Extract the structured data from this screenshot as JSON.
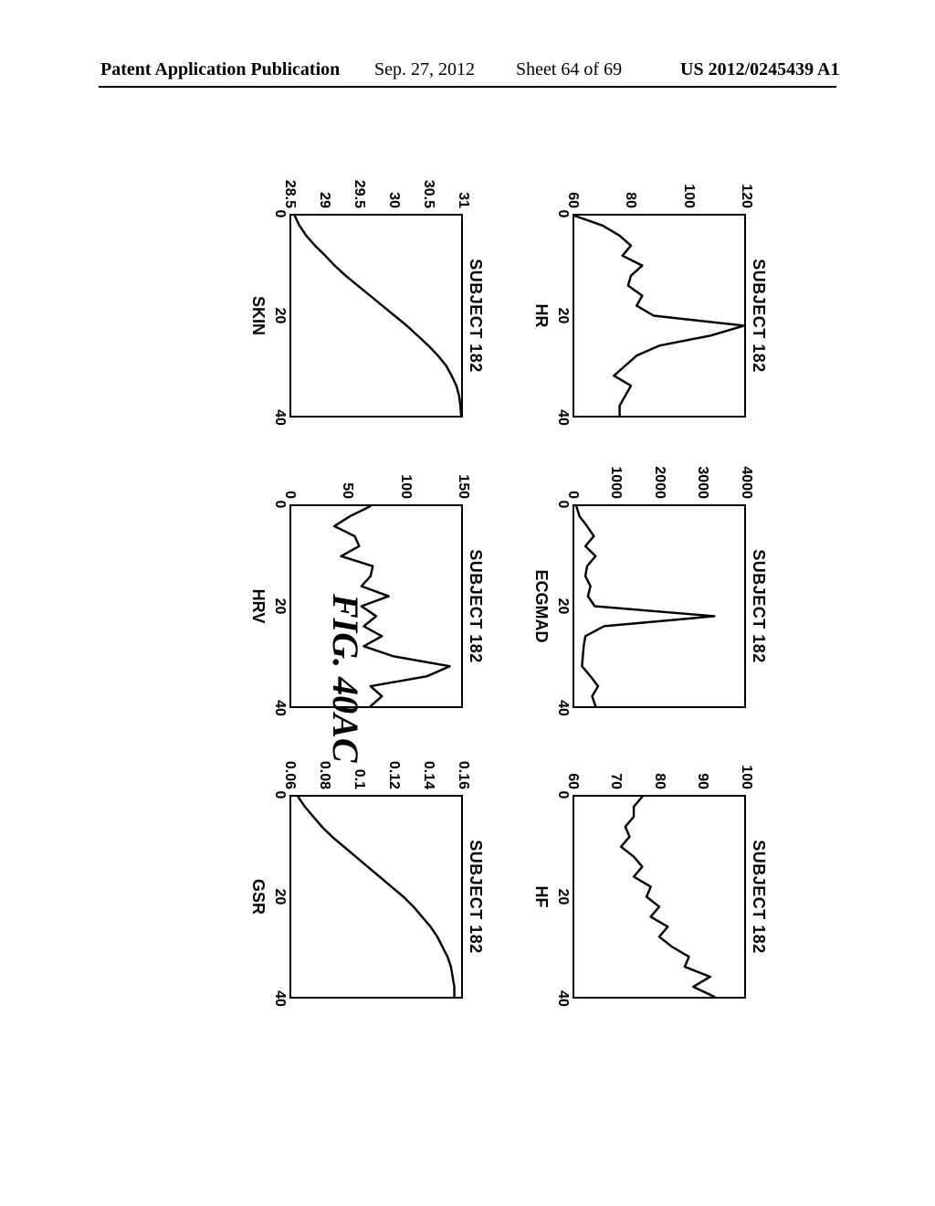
{
  "header": {
    "left": "Patent Application Publication",
    "date": "Sep. 27, 2012",
    "sheet": "Sheet 64 of 69",
    "docnum": "US 2012/0245439 A1"
  },
  "figure_label": "FIG. 40AC",
  "common": {
    "panel_title": "SUBJECT 182",
    "xticks": [
      0,
      20,
      40
    ],
    "xlim": [
      0,
      40
    ],
    "line_color": "#000000",
    "line_width": 2.5,
    "title_fontsize": 18,
    "tick_fontsize": 16,
    "xlabel_fontsize": 18,
    "border_color": "#000000",
    "background_color": "#ffffff"
  },
  "panels": [
    {
      "id": "hr",
      "xlabel": "HR",
      "ylim": [
        60,
        120
      ],
      "yticks": [
        60,
        80,
        100,
        120
      ],
      "series": {
        "x": [
          0,
          2,
          4,
          6,
          8,
          10,
          12,
          14,
          16,
          18,
          20,
          22,
          24,
          26,
          28,
          30,
          32,
          34,
          36,
          38,
          40
        ],
        "y": [
          60,
          70,
          76,
          80,
          77,
          84,
          80,
          79,
          84,
          82,
          88,
          120,
          108,
          90,
          82,
          78,
          74,
          80,
          78,
          76,
          76
        ]
      }
    },
    {
      "id": "ecgmad",
      "xlabel": "ECGMAD",
      "ylim": [
        0,
        4000
      ],
      "yticks": [
        0,
        1000,
        2000,
        3000,
        4000
      ],
      "series": {
        "x": [
          0,
          2,
          4,
          6,
          8,
          10,
          12,
          14,
          16,
          18,
          20,
          22,
          24,
          26,
          28,
          30,
          32,
          34,
          36,
          38,
          40
        ],
        "y": [
          50,
          120,
          300,
          460,
          260,
          500,
          300,
          260,
          380,
          320,
          480,
          3300,
          700,
          260,
          220,
          200,
          180,
          380,
          560,
          420,
          500
        ]
      }
    },
    {
      "id": "hf",
      "xlabel": "HF",
      "ylim": [
        60,
        100
      ],
      "yticks": [
        60,
        70,
        80,
        90,
        100
      ],
      "series": {
        "x": [
          0,
          2,
          4,
          6,
          8,
          10,
          12,
          14,
          16,
          18,
          20,
          22,
          24,
          26,
          28,
          30,
          32,
          34,
          36,
          38,
          40
        ],
        "y": [
          76,
          74,
          74,
          72,
          73,
          71,
          74,
          76,
          74,
          78,
          77,
          80,
          78,
          82,
          80,
          83,
          87,
          86,
          92,
          88,
          93
        ]
      }
    },
    {
      "id": "skin",
      "xlabel": "SKIN",
      "ylim": [
        28.5,
        31
      ],
      "yticks": [
        28.5,
        29,
        29.5,
        30,
        30.5,
        31
      ],
      "series": {
        "x": [
          0,
          2,
          4,
          6,
          8,
          10,
          12,
          14,
          16,
          18,
          20,
          22,
          24,
          26,
          28,
          30,
          32,
          34,
          36,
          38,
          40
        ],
        "y": [
          28.55,
          28.62,
          28.72,
          28.85,
          29.0,
          29.14,
          29.3,
          29.48,
          29.66,
          29.84,
          30.02,
          30.2,
          30.36,
          30.52,
          30.66,
          30.78,
          30.86,
          30.93,
          30.97,
          30.99,
          31.0
        ]
      }
    },
    {
      "id": "hrv",
      "xlabel": "HRV",
      "ylim": [
        0,
        150
      ],
      "yticks": [
        0,
        50,
        100,
        150
      ],
      "series": {
        "x": [
          0,
          2,
          4,
          6,
          8,
          10,
          12,
          14,
          16,
          18,
          20,
          22,
          24,
          26,
          28,
          30,
          32,
          34,
          36,
          38,
          40
        ],
        "y": [
          70,
          52,
          38,
          56,
          60,
          44,
          72,
          70,
          62,
          86,
          62,
          75,
          64,
          80,
          64,
          90,
          140,
          120,
          70,
          80,
          70
        ]
      }
    },
    {
      "id": "gsr",
      "xlabel": "GSR",
      "ylim": [
        0.06,
        0.16
      ],
      "yticks": [
        0.06,
        0.08,
        0.1,
        0.12,
        0.14,
        0.16
      ],
      "ytick_labels": [
        "0.06",
        "0.08",
        "0.1",
        "0.12",
        "0.14",
        "0.16"
      ],
      "series": {
        "x": [
          0,
          2,
          4,
          6,
          8,
          10,
          12,
          14,
          16,
          18,
          20,
          22,
          24,
          26,
          28,
          30,
          32,
          34,
          36,
          38,
          40
        ],
        "y": [
          0.064,
          0.068,
          0.073,
          0.078,
          0.084,
          0.091,
          0.098,
          0.105,
          0.112,
          0.119,
          0.126,
          0.132,
          0.137,
          0.142,
          0.146,
          0.149,
          0.152,
          0.154,
          0.155,
          0.156,
          0.156
        ]
      }
    }
  ]
}
